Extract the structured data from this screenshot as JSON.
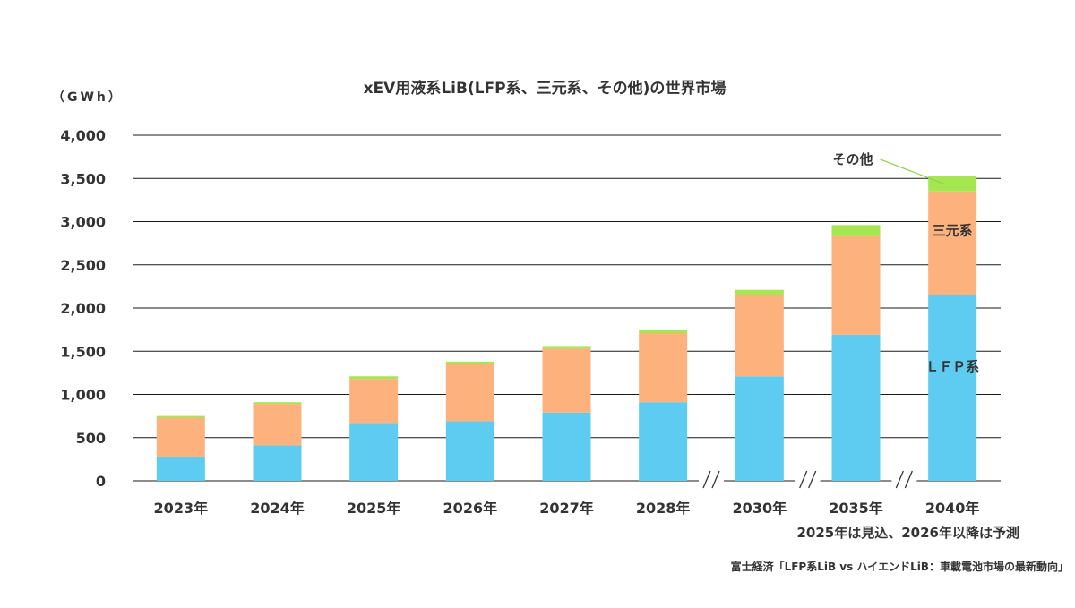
{
  "chart_data": {
    "type": "bar",
    "stacked": true,
    "title": "xEV用液系LiB(LFP系、三元系、その他)の世界市場",
    "ylabel": "（GWh）",
    "ylim": [
      0,
      4000
    ],
    "yticks": [
      0,
      500,
      1000,
      1500,
      2000,
      2500,
      3000,
      3500,
      4000
    ],
    "ytick_labels": [
      "0",
      "500",
      "1,000",
      "1,500",
      "2,000",
      "2,500",
      "3,000",
      "3,500",
      "4,000"
    ],
    "grid": true,
    "categories": [
      "2023年",
      "2024年",
      "2025年",
      "2026年",
      "2027年",
      "2028年",
      "2030年",
      "2035年",
      "2040年"
    ],
    "axis_breaks_before": [
      "2030年",
      "2035年",
      "2040年"
    ],
    "series": [
      {
        "name": "ＬＦＰ系",
        "color": "#5ecbf0",
        "values": [
          280,
          410,
          670,
          690,
          790,
          910,
          1210,
          1690,
          2150
        ]
      },
      {
        "name": "三元系",
        "color": "#fdb27d",
        "values": [
          450,
          480,
          510,
          660,
          740,
          800,
          940,
          1140,
          1200
        ]
      },
      {
        "name": "その他",
        "color": "#a6e651",
        "values": [
          20,
          20,
          30,
          30,
          30,
          40,
          60,
          130,
          180
        ]
      }
    ],
    "annotations": [
      "2025年は見込、2026年以降は予測"
    ],
    "source": "富士経済「LFP系LiB vs ハイエンドLiB：車載電池市場の最新動向」"
  }
}
